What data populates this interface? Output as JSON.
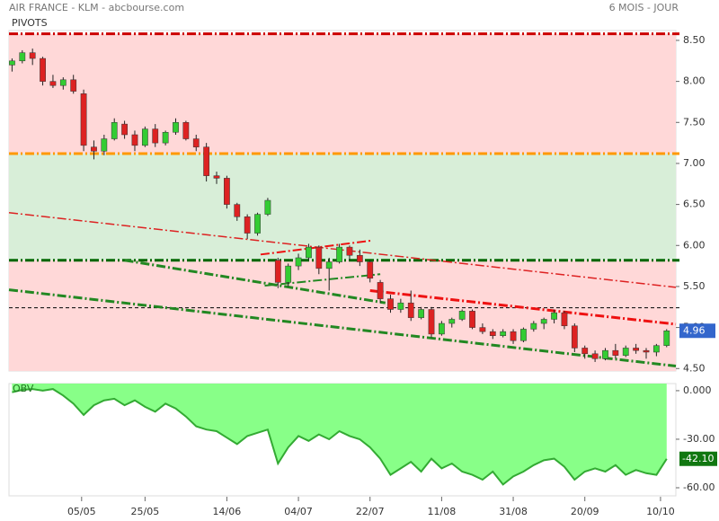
{
  "chart_data": [
    {
      "type": "candlestick",
      "title": "AIR FRANCE - KLM - abcbourse.com",
      "subtitle": "6 MOIS - JOUR",
      "legend": "PIVOTS",
      "up_color": "#33cc33",
      "down_color": "#dd2222",
      "last_color": "#3366cc",
      "candles": [
        [
          8.2,
          8.28,
          8.12,
          8.25
        ],
        [
          8.25,
          8.38,
          8.22,
          8.35
        ],
        [
          8.35,
          8.4,
          8.2,
          8.28
        ],
        [
          8.28,
          8.3,
          7.95,
          8.0
        ],
        [
          8.0,
          8.08,
          7.92,
          7.95
        ],
        [
          7.95,
          8.05,
          7.9,
          8.02
        ],
        [
          8.02,
          8.08,
          7.85,
          7.88
        ],
        [
          7.85,
          7.9,
          7.15,
          7.22
        ],
        [
          7.2,
          7.28,
          7.05,
          7.15
        ],
        [
          7.15,
          7.35,
          7.1,
          7.3
        ],
        [
          7.3,
          7.55,
          7.28,
          7.5
        ],
        [
          7.48,
          7.52,
          7.3,
          7.35
        ],
        [
          7.35,
          7.4,
          7.15,
          7.22
        ],
        [
          7.22,
          7.45,
          7.2,
          7.42
        ],
        [
          7.42,
          7.48,
          7.2,
          7.25
        ],
        [
          7.25,
          7.4,
          7.22,
          7.38
        ],
        [
          7.38,
          7.55,
          7.35,
          7.5
        ],
        [
          7.5,
          7.52,
          7.28,
          7.3
        ],
        [
          7.3,
          7.35,
          7.15,
          7.2
        ],
        [
          7.2,
          7.25,
          6.78,
          6.85
        ],
        [
          6.85,
          6.9,
          6.75,
          6.82
        ],
        [
          6.82,
          6.85,
          6.45,
          6.5
        ],
        [
          6.5,
          6.52,
          6.3,
          6.35
        ],
        [
          6.35,
          6.38,
          6.08,
          6.15
        ],
        [
          6.15,
          6.4,
          6.12,
          6.38
        ],
        [
          6.38,
          6.58,
          6.36,
          6.55
        ],
        [
          5.82,
          5.85,
          5.48,
          5.55
        ],
        [
          5.55,
          5.78,
          5.5,
          5.75
        ],
        [
          5.75,
          5.9,
          5.7,
          5.85
        ],
        [
          5.85,
          6.02,
          5.82,
          5.98
        ],
        [
          5.98,
          6.0,
          5.65,
          5.72
        ],
        [
          5.72,
          5.85,
          5.45,
          5.8
        ],
        [
          5.8,
          6.02,
          5.78,
          5.98
        ],
        [
          5.98,
          6.0,
          5.82,
          5.88
        ],
        [
          5.88,
          5.95,
          5.75,
          5.8
        ],
        [
          5.8,
          5.82,
          5.55,
          5.6
        ],
        [
          5.55,
          5.58,
          5.3,
          5.35
        ],
        [
          5.35,
          5.4,
          5.18,
          5.22
        ],
        [
          5.22,
          5.35,
          5.18,
          5.3
        ],
        [
          5.3,
          5.45,
          5.08,
          5.12
        ],
        [
          5.12,
          5.25,
          5.1,
          5.22
        ],
        [
          5.22,
          5.25,
          4.88,
          4.92
        ],
        [
          4.92,
          5.08,
          4.9,
          5.05
        ],
        [
          5.05,
          5.12,
          5.0,
          5.1
        ],
        [
          5.1,
          5.22,
          5.08,
          5.2
        ],
        [
          5.2,
          5.22,
          4.98,
          5.0
        ],
        [
          5.0,
          5.05,
          4.92,
          4.95
        ],
        [
          4.95,
          4.98,
          4.86,
          4.9
        ],
        [
          4.9,
          4.98,
          4.88,
          4.95
        ],
        [
          4.95,
          4.98,
          4.8,
          4.84
        ],
        [
          4.84,
          5.0,
          4.82,
          4.98
        ],
        [
          4.98,
          5.08,
          4.95,
          5.05
        ],
        [
          5.05,
          5.12,
          4.98,
          5.1
        ],
        [
          5.1,
          5.22,
          5.05,
          5.18
        ],
        [
          5.18,
          5.2,
          4.98,
          5.02
        ],
        [
          5.02,
          5.05,
          4.7,
          4.75
        ],
        [
          4.75,
          4.78,
          4.62,
          4.68
        ],
        [
          4.68,
          4.72,
          4.58,
          4.62
        ],
        [
          4.62,
          4.75,
          4.6,
          4.72
        ],
        [
          4.72,
          4.8,
          4.62,
          4.66
        ],
        [
          4.66,
          4.78,
          4.64,
          4.75
        ],
        [
          4.75,
          4.8,
          4.68,
          4.72
        ],
        [
          4.72,
          4.75,
          4.62,
          4.7
        ],
        [
          4.7,
          4.8,
          4.65,
          4.78
        ],
        [
          4.78,
          4.98,
          4.76,
          4.96
        ]
      ],
      "xlim": [
        -0.3,
        64.9
      ],
      "xticks": [
        {
          "value": 6.8,
          "label": "05/05"
        },
        {
          "value": 13,
          "label": "25/05"
        },
        {
          "value": 21,
          "label": "14/06"
        },
        {
          "value": 28,
          "label": "04/07"
        },
        {
          "value": 35,
          "label": "22/07"
        },
        {
          "value": 42,
          "label": "11/08"
        },
        {
          "value": 49,
          "label": "31/08"
        },
        {
          "value": 56,
          "label": "20/09"
        },
        {
          "value": 63.4,
          "label": "10/10"
        }
      ],
      "ylim": [
        4.47,
        8.62
      ],
      "yticks": [
        {
          "value": 8.5,
          "label": "8.50"
        },
        {
          "value": 8,
          "label": "8.00"
        },
        {
          "value": 7.5,
          "label": "7.50"
        },
        {
          "value": 7,
          "label": "7.00"
        },
        {
          "value": 6.5,
          "label": "6.50"
        },
        {
          "value": 6,
          "label": "6.00"
        },
        {
          "value": 5.5,
          "label": "5.50"
        },
        {
          "value": 5,
          "label": "5.00"
        },
        {
          "value": 4.5,
          "label": "4.50"
        }
      ],
      "pivots": [
        {
          "value": 8.58,
          "color": "#cc0000",
          "style": "dashdot"
        },
        {
          "value": 7.12,
          "color": "#ff9900",
          "style": "dashdot"
        },
        {
          "value": 5.82,
          "color": "#006600",
          "style": "dashdot"
        },
        {
          "value": 5.24,
          "color": "#000000",
          "style": "dashed"
        }
      ],
      "zone_colors": [
        "#ffd8d8",
        "#d8eed8",
        "#ffd8d8"
      ],
      "trendlines": [
        {
          "from": [
            -0.3,
            6.4
          ],
          "to": [
            64.9,
            5.49
          ],
          "color": "#dd2222",
          "width": 1.5
        },
        {
          "from": [
            35,
            5.45
          ],
          "to": [
            64.9,
            5.04
          ],
          "color": "#ee1111",
          "width": 3
        },
        {
          "from": [
            -0.3,
            5.46
          ],
          "to": [
            64.9,
            4.53
          ],
          "color": "#228822",
          "width": 3
        },
        {
          "from": [
            11,
            5.82
          ],
          "to": [
            36.5,
            5.3
          ],
          "color": "#228822",
          "width": 3
        },
        {
          "from": [
            24.3,
            5.89
          ],
          "to": [
            35.2,
            6.06
          ],
          "color": "#ee1111",
          "width": 2
        },
        {
          "from": [
            24.7,
            5.51
          ],
          "to": [
            36,
            5.65
          ],
          "color": "#228822",
          "width": 2
        }
      ]
    },
    {
      "type": "area",
      "title": "OBV",
      "color": "#33aa33",
      "fill": "#88ff88",
      "last_color": "#117711",
      "values": [
        -1,
        0.5,
        1,
        0,
        1,
        -3,
        -8,
        -15,
        -9,
        -6,
        -5,
        -9,
        -6,
        -10,
        -13,
        -8,
        -11,
        -16,
        -22,
        -24,
        -25,
        -29,
        -33,
        -28,
        -26,
        -24,
        -45,
        -35,
        -28,
        -31,
        -27,
        -30,
        -25,
        -28,
        -30,
        -35,
        -42,
        -52,
        -48,
        -44,
        -50,
        -42,
        -48,
        -45,
        -50,
        -52,
        -55,
        -50,
        -58,
        -53,
        -50,
        -46,
        -43,
        -42,
        -47,
        -55,
        -50,
        -48,
        -50,
        -46,
        -52,
        -49,
        -51,
        -52,
        -42.1
      ],
      "last_label": "-42.10",
      "ylim": [
        -65,
        4.4
      ],
      "yticks": [
        {
          "value": 0,
          "label": "0.000"
        },
        {
          "value": -30,
          "label": "-30.00"
        },
        {
          "value": -60,
          "label": "-60.00"
        }
      ]
    }
  ]
}
